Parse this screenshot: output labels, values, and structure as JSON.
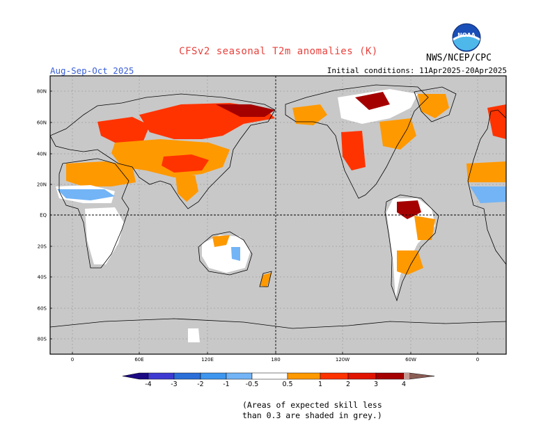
{
  "header": {
    "title": "CFSv2 seasonal T2m anomalies (K)",
    "season": "Aug-Sep-Oct 2025",
    "initial_conditions": "Initial conditions: 11Apr2025-20Apr2025",
    "agency": "NWS/NCEP/CPC",
    "logo_text": "NOAA"
  },
  "map": {
    "lat_labels": [
      "80N",
      "60N",
      "40N",
      "20N",
      "EQ",
      "20S",
      "40S",
      "60S",
      "80S"
    ],
    "lon_labels": [
      "0",
      "60E",
      "120E",
      "180",
      "120W",
      "60W",
      "0"
    ],
    "colors": {
      "ocean": "#c8c8c8",
      "coast": "#000000",
      "grid": "#888888"
    }
  },
  "colorbar": {
    "labels": [
      "-4",
      "-3",
      "-2",
      "-1",
      "-0.5",
      "0.5",
      "1",
      "2",
      "3",
      "4"
    ],
    "colors": [
      "#1b0a82",
      "#3e3ad1",
      "#2a6ed8",
      "#3f96ee",
      "#72b4f6",
      "#ffffff",
      "#ff9900",
      "#ff3300",
      "#e01400",
      "#a50000",
      "#c49a94",
      "#8a5d54"
    ]
  },
  "note": {
    "line1": "(Areas of expected skill less",
    "line2": "than 0.3 are shaded in grey.)"
  }
}
